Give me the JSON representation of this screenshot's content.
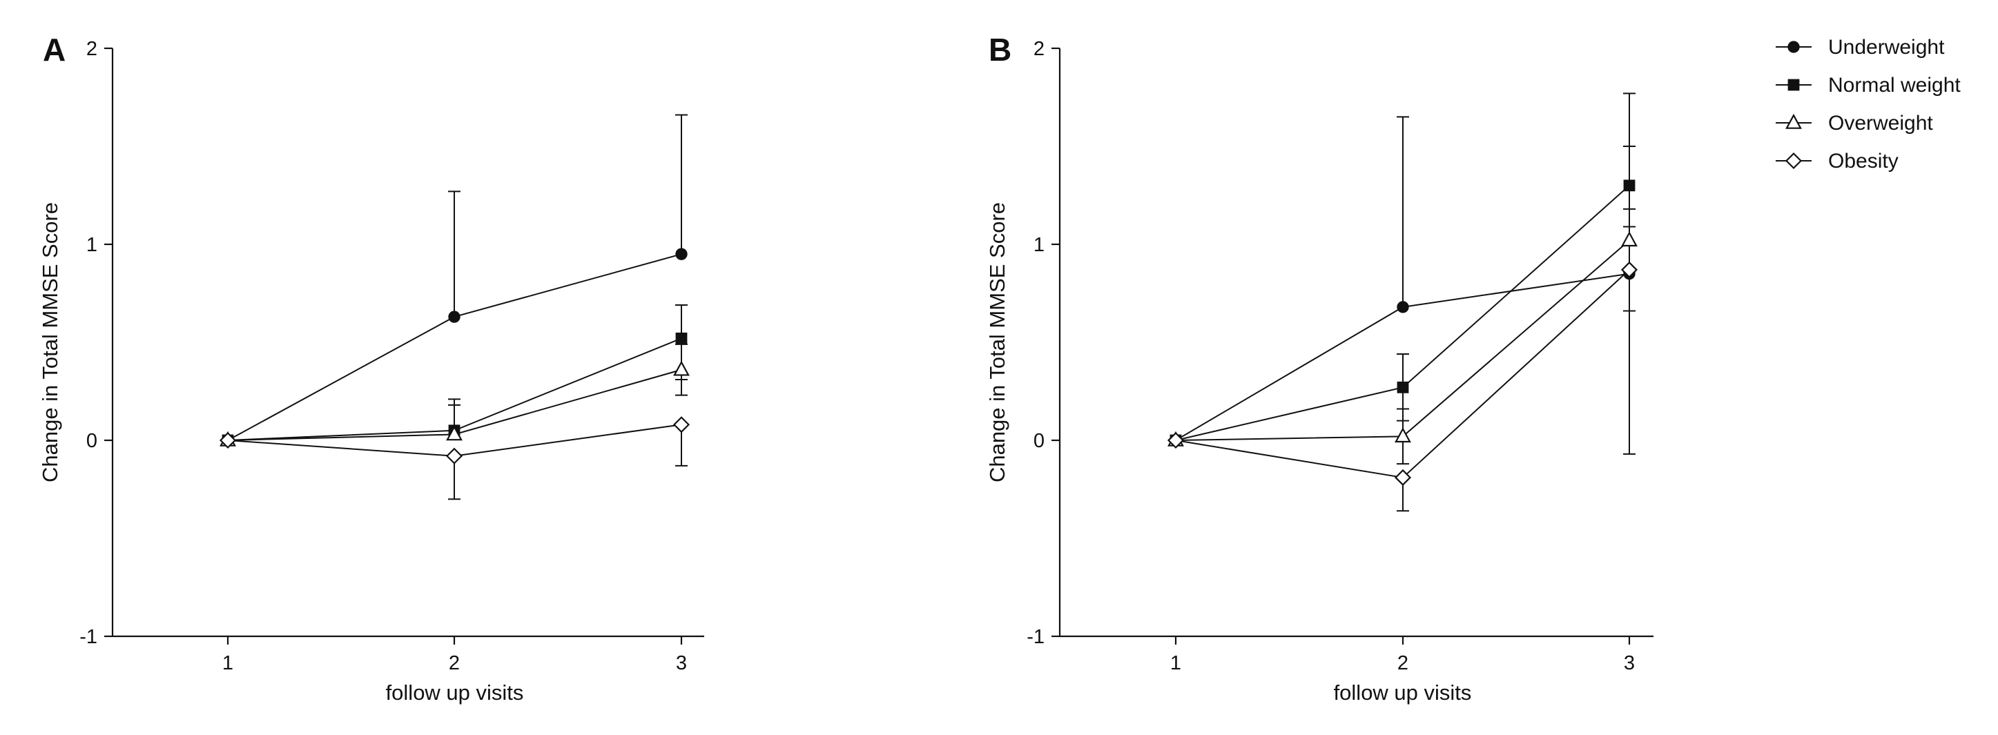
{
  "legend": {
    "position": "top-right",
    "entries": [
      {
        "label": "Underweight",
        "marker": "filled-circle"
      },
      {
        "label": "Normal weight",
        "marker": "filled-square"
      },
      {
        "label": "Overweight",
        "marker": "open-triangle"
      },
      {
        "label": "Obesity",
        "marker": "open-diamond"
      }
    ]
  },
  "chart_data": [
    {
      "type": "line",
      "panel": "A",
      "xlabel": "follow up visits",
      "ylabel": "Change in Total MMSE Score",
      "x": [
        1,
        2,
        3
      ],
      "xticks": [
        "1",
        "2",
        "3"
      ],
      "xlim": [
        0.5,
        3.1
      ],
      "ylim": [
        -1,
        2
      ],
      "yticks": [
        "-1",
        "0",
        "1",
        "2"
      ],
      "grid": false,
      "series": [
        {
          "name": "Underweight",
          "marker": "filled-circle",
          "values": [
            0,
            0.63,
            0.95
          ],
          "err_upper": [
            0,
            1.27,
            1.66
          ],
          "err_lower": [
            0,
            0.63,
            0.95
          ]
        },
        {
          "name": "Normal weight",
          "marker": "filled-square",
          "values": [
            0,
            0.05,
            0.52
          ],
          "err_upper": [
            0,
            0.21,
            0.69
          ],
          "err_lower": [
            0,
            0.05,
            0.31
          ]
        },
        {
          "name": "Overweight",
          "marker": "open-triangle",
          "values": [
            0,
            0.03,
            0.36
          ],
          "err_upper": [
            0,
            0.18,
            0.49
          ],
          "err_lower": [
            0,
            0.03,
            0.23
          ]
        },
        {
          "name": "Obesity",
          "marker": "open-diamond",
          "values": [
            0,
            -0.08,
            0.08
          ],
          "err_upper": [
            0,
            -0.08,
            0.08
          ],
          "err_lower": [
            0,
            -0.3,
            -0.13
          ]
        }
      ]
    },
    {
      "type": "line",
      "panel": "B",
      "xlabel": "follow up visits",
      "ylabel": "Change in Total MMSE Score",
      "x": [
        1,
        2,
        3
      ],
      "xticks": [
        "1",
        "2",
        "3"
      ],
      "xlim": [
        0.5,
        3.1
      ],
      "ylim": [
        -1,
        2
      ],
      "yticks": [
        "-1",
        "0",
        "1",
        "2"
      ],
      "grid": false,
      "series": [
        {
          "name": "Underweight",
          "marker": "filled-circle",
          "values": [
            0,
            0.68,
            0.85
          ],
          "err_upper": [
            0,
            1.65,
            1.77
          ],
          "err_lower": [
            0,
            0.68,
            -0.07
          ]
        },
        {
          "name": "Normal weight",
          "marker": "filled-square",
          "values": [
            0,
            0.27,
            1.3
          ],
          "err_upper": [
            0,
            0.44,
            1.5
          ],
          "err_lower": [
            0,
            0.1,
            1.3
          ]
        },
        {
          "name": "Overweight",
          "marker": "open-triangle",
          "values": [
            0,
            0.02,
            1.02
          ],
          "err_upper": [
            0,
            0.16,
            1.18
          ],
          "err_lower": [
            0,
            -0.12,
            0.86
          ]
        },
        {
          "name": "Obesity",
          "marker": "open-diamond",
          "values": [
            0,
            -0.19,
            0.87
          ],
          "err_upper": [
            0,
            -0.19,
            1.09
          ],
          "err_lower": [
            0,
            -0.36,
            0.66
          ]
        }
      ]
    }
  ]
}
